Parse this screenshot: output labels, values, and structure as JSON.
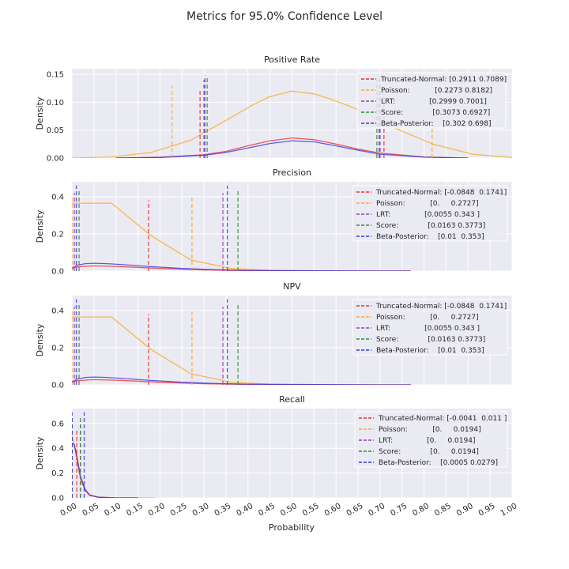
{
  "chart_data": {
    "type": "line",
    "title": "Metrics for 95.0% Confidence Level",
    "xlabel": "Probability",
    "ylabel": "Density",
    "xlim": [
      0,
      1
    ],
    "x_ticks": [
      0.0,
      0.05,
      0.1,
      0.15,
      0.2,
      0.25,
      0.3,
      0.35,
      0.4,
      0.45,
      0.5,
      0.55,
      0.6,
      0.65,
      0.7,
      0.75,
      0.8,
      0.85,
      0.9,
      0.95,
      1.0
    ],
    "x_tick_labels": [
      "0.00",
      "0.05",
      "0.10",
      "0.15",
      "0.20",
      "0.25",
      "0.30",
      "0.35",
      "0.40",
      "0.45",
      "0.50",
      "0.55",
      "0.60",
      "0.65",
      "0.70",
      "0.75",
      "0.80",
      "0.85",
      "0.90",
      "0.95",
      "1.00"
    ],
    "method_colors": {
      "Truncated-Normal": "#ee3030",
      "Poisson": "#ffa825",
      "LRT": "#9b3fb5",
      "Score": "#2f8f3a",
      "Beta-Posterior": "#3636e8"
    },
    "panels": [
      {
        "title": "Positive Rate",
        "ylim": [
          0,
          0.16
        ],
        "y_ticks": [
          0.0,
          0.05,
          0.1,
          0.15
        ],
        "y_tick_labels": [
          "0.00",
          "0.05",
          "0.10",
          "0.15"
        ],
        "legend": [
          {
            "method": "Truncated-Normal",
            "text": "Truncated-Normal: [0.2911 0.7089]",
            "interval": [
              0.2911,
              0.7089
            ]
          },
          {
            "method": "Poisson",
            "text": "Poisson:           [0.2273 0.8182]",
            "interval": [
              0.2273,
              0.8182
            ]
          },
          {
            "method": "LRT",
            "text": "LRT:               [0.2999 0.7001]",
            "interval": [
              0.2999,
              0.7001
            ]
          },
          {
            "method": "Score",
            "text": "Score:             [0.3073 0.6927]",
            "interval": [
              0.3073,
              0.6927
            ]
          },
          {
            "method": "Beta-Posterior",
            "text": "Beta-Posterior:    [0.302 0.698]",
            "interval": [
              0.302,
              0.698
            ]
          }
        ],
        "vline_heights": {
          "Truncated-Normal": 0.123,
          "Poisson": 0.13,
          "LRT": 0.14,
          "Score": 0.145,
          "Beta-Posterior": 0.148
        },
        "curves": [
          {
            "method": "Poisson",
            "x": [
              0,
              0.09,
              0.18,
              0.27,
              0.36,
              0.41,
              0.45,
              0.5,
              0.55,
              0.59,
              0.64,
              0.73,
              0.82,
              0.91,
              1.0
            ],
            "y": [
              0,
              0.002,
              0.01,
              0.032,
              0.072,
              0.095,
              0.11,
              0.12,
              0.115,
              0.105,
              0.09,
              0.055,
              0.025,
              0.007,
              0.001
            ]
          },
          {
            "method": "Truncated-Normal",
            "x": [
              0.1,
              0.2,
              0.3,
              0.35,
              0.4,
              0.45,
              0.5,
              0.55,
              0.6,
              0.65,
              0.7,
              0.8,
              0.9
            ],
            "y": [
              0,
              0.0015,
              0.006,
              0.012,
              0.022,
              0.031,
              0.036,
              0.033,
              0.025,
              0.016,
              0.009,
              0.002,
              0
            ]
          },
          {
            "method": "Beta-Posterior",
            "x": [
              0.1,
              0.2,
              0.3,
              0.35,
              0.4,
              0.45,
              0.5,
              0.55,
              0.6,
              0.65,
              0.7,
              0.8,
              0.9
            ],
            "y": [
              0,
              0.001,
              0.005,
              0.01,
              0.018,
              0.026,
              0.031,
              0.029,
              0.022,
              0.014,
              0.007,
              0.0015,
              0
            ]
          }
        ]
      },
      {
        "title": "Precision",
        "ylim": [
          0,
          0.48
        ],
        "y_ticks": [
          0.0,
          0.2,
          0.4
        ],
        "y_tick_labels": [
          "0.0",
          "0.2",
          "0.4"
        ],
        "legend": [
          {
            "method": "Truncated-Normal",
            "text": "Truncated-Normal: [-0.0848  0.1741]",
            "interval": [
              -0.0848,
              0.1741
            ]
          },
          {
            "method": "Poisson",
            "text": "Poisson:           [0.     0.2727]",
            "interval": [
              0.0,
              0.2727
            ]
          },
          {
            "method": "LRT",
            "text": "LRT:               [0.0055 0.343 ]",
            "interval": [
              0.0055,
              0.343
            ]
          },
          {
            "method": "Score",
            "text": "Score:             [0.0163 0.3773]",
            "interval": [
              0.0163,
              0.3773
            ]
          },
          {
            "method": "Beta-Posterior",
            "text": "Beta-Posterior:    [0.01  0.353]",
            "interval": [
              0.01,
              0.353
            ]
          }
        ],
        "vline_heights": {
          "Truncated-Normal": 0.38,
          "Poisson": 0.4,
          "LRT": 0.42,
          "Score": 0.44,
          "Beta-Posterior": 0.46
        },
        "curves": [
          {
            "method": "Poisson",
            "x": [
              0,
              0.09,
              0.18,
              0.27,
              0.36,
              0.45,
              0.55,
              0.64,
              0.73,
              0.77
            ],
            "y": [
              0.365,
              0.365,
              0.19,
              0.06,
              0.015,
              0.004,
              0.001,
              0,
              0,
              0
            ]
          },
          {
            "method": "Truncated-Normal",
            "x": [
              0,
              0.02,
              0.05,
              0.1,
              0.15,
              0.2,
              0.3,
              0.4,
              0.5,
              0.6,
              0.7,
              0.77
            ],
            "y": [
              0.02,
              0.024,
              0.028,
              0.025,
              0.02,
              0.014,
              0.006,
              0.002,
              0.001,
              0,
              0,
              0
            ]
          },
          {
            "method": "Beta-Posterior",
            "x": [
              0,
              0.01,
              0.03,
              0.05,
              0.08,
              0.12,
              0.18,
              0.25,
              0.32,
              0.4,
              0.5,
              0.6,
              0.7,
              0.77
            ],
            "y": [
              0.01,
              0.03,
              0.04,
              0.042,
              0.04,
              0.034,
              0.024,
              0.014,
              0.008,
              0.004,
              0.002,
              0.001,
              0,
              0
            ]
          }
        ]
      },
      {
        "title": "NPV",
        "ylim": [
          0,
          0.48
        ],
        "y_ticks": [
          0.0,
          0.2,
          0.4
        ],
        "y_tick_labels": [
          "0.0",
          "0.2",
          "0.4"
        ],
        "legend": [
          {
            "method": "Truncated-Normal",
            "text": "Truncated-Normal: [-0.0848  0.1741]",
            "interval": [
              -0.0848,
              0.1741
            ]
          },
          {
            "method": "Poisson",
            "text": "Poisson:           [0.     0.2727]",
            "interval": [
              0.0,
              0.2727
            ]
          },
          {
            "method": "LRT",
            "text": "LRT:               [0.0055 0.343 ]",
            "interval": [
              0.0055,
              0.343
            ]
          },
          {
            "method": "Score",
            "text": "Score:             [0.0163 0.3773]",
            "interval": [
              0.0163,
              0.3773
            ]
          },
          {
            "method": "Beta-Posterior",
            "text": "Beta-Posterior:    [0.01  0.353]",
            "interval": [
              0.01,
              0.353
            ]
          }
        ],
        "vline_heights": {
          "Truncated-Normal": 0.38,
          "Poisson": 0.4,
          "LRT": 0.42,
          "Score": 0.44,
          "Beta-Posterior": 0.46
        },
        "curves": [
          {
            "method": "Poisson",
            "x": [
              0,
              0.09,
              0.18,
              0.27,
              0.36,
              0.45,
              0.55,
              0.64,
              0.73,
              0.77
            ],
            "y": [
              0.365,
              0.365,
              0.19,
              0.06,
              0.015,
              0.004,
              0.001,
              0,
              0,
              0
            ]
          },
          {
            "method": "Truncated-Normal",
            "x": [
              0,
              0.02,
              0.05,
              0.1,
              0.15,
              0.2,
              0.3,
              0.4,
              0.5,
              0.6,
              0.7,
              0.77
            ],
            "y": [
              0.02,
              0.024,
              0.028,
              0.025,
              0.02,
              0.014,
              0.006,
              0.002,
              0.001,
              0,
              0,
              0
            ]
          },
          {
            "method": "Beta-Posterior",
            "x": [
              0,
              0.01,
              0.03,
              0.05,
              0.08,
              0.12,
              0.18,
              0.25,
              0.32,
              0.4,
              0.5,
              0.6,
              0.7,
              0.77
            ],
            "y": [
              0.01,
              0.03,
              0.04,
              0.042,
              0.04,
              0.034,
              0.024,
              0.014,
              0.008,
              0.004,
              0.002,
              0.001,
              0,
              0
            ]
          }
        ]
      },
      {
        "title": "Recall",
        "ylim": [
          0,
          0.72
        ],
        "y_ticks": [
          0.0,
          0.2,
          0.4,
          0.6
        ],
        "y_tick_labels": [
          "0.0",
          "0.2",
          "0.4",
          "0.6"
        ],
        "legend": [
          {
            "method": "Truncated-Normal",
            "text": "Truncated-Normal: [-0.0041  0.011 ]",
            "interval": [
              -0.0041,
              0.011
            ]
          },
          {
            "method": "Poisson",
            "text": "Poisson:           [0.     0.0194]",
            "interval": [
              0.0,
              0.0194
            ]
          },
          {
            "method": "LRT",
            "text": "LRT:               [0.     0.0194]",
            "interval": [
              0.0,
              0.0194
            ]
          },
          {
            "method": "Score",
            "text": "Score:             [0.     0.0194]",
            "interval": [
              0.0,
              0.0194
            ]
          },
          {
            "method": "Beta-Posterior",
            "text": "Beta-Posterior:    [0.0005 0.0279]",
            "interval": [
              0.0005,
              0.0279
            ]
          }
        ],
        "vline_heights": {
          "Truncated-Normal": 0.56,
          "Poisson": 0.58,
          "LRT": 0.62,
          "Score": 0.66,
          "Beta-Posterior": 0.69
        },
        "curves": [
          {
            "method": "Poisson",
            "x": [
              -0.005,
              0,
              0.005,
              0.01,
              0.015,
              0.02,
              0.03,
              0.04,
              0.06,
              0.1,
              0.15,
              0.19
            ],
            "y": [
              0.55,
              0.5,
              0.44,
              0.33,
              0.22,
              0.14,
              0.06,
              0.02,
              0.005,
              0,
              0,
              0
            ]
          },
          {
            "method": "Truncated-Normal",
            "x": [
              -0.005,
              0,
              0.005,
              0.01,
              0.015,
              0.02,
              0.03,
              0.04,
              0.06,
              0.1,
              0.15
            ],
            "y": [
              0.42,
              0.44,
              0.43,
              0.36,
              0.26,
              0.17,
              0.07,
              0.025,
              0.006,
              0,
              0
            ]
          },
          {
            "method": "Beta-Posterior",
            "x": [
              -0.005,
              0,
              0.005,
              0.01,
              0.015,
              0.02,
              0.03,
              0.04,
              0.06,
              0.1,
              0.15
            ],
            "y": [
              0.42,
              0.44,
              0.43,
              0.35,
              0.25,
              0.16,
              0.065,
              0.022,
              0.005,
              0,
              0
            ]
          }
        ]
      }
    ]
  }
}
